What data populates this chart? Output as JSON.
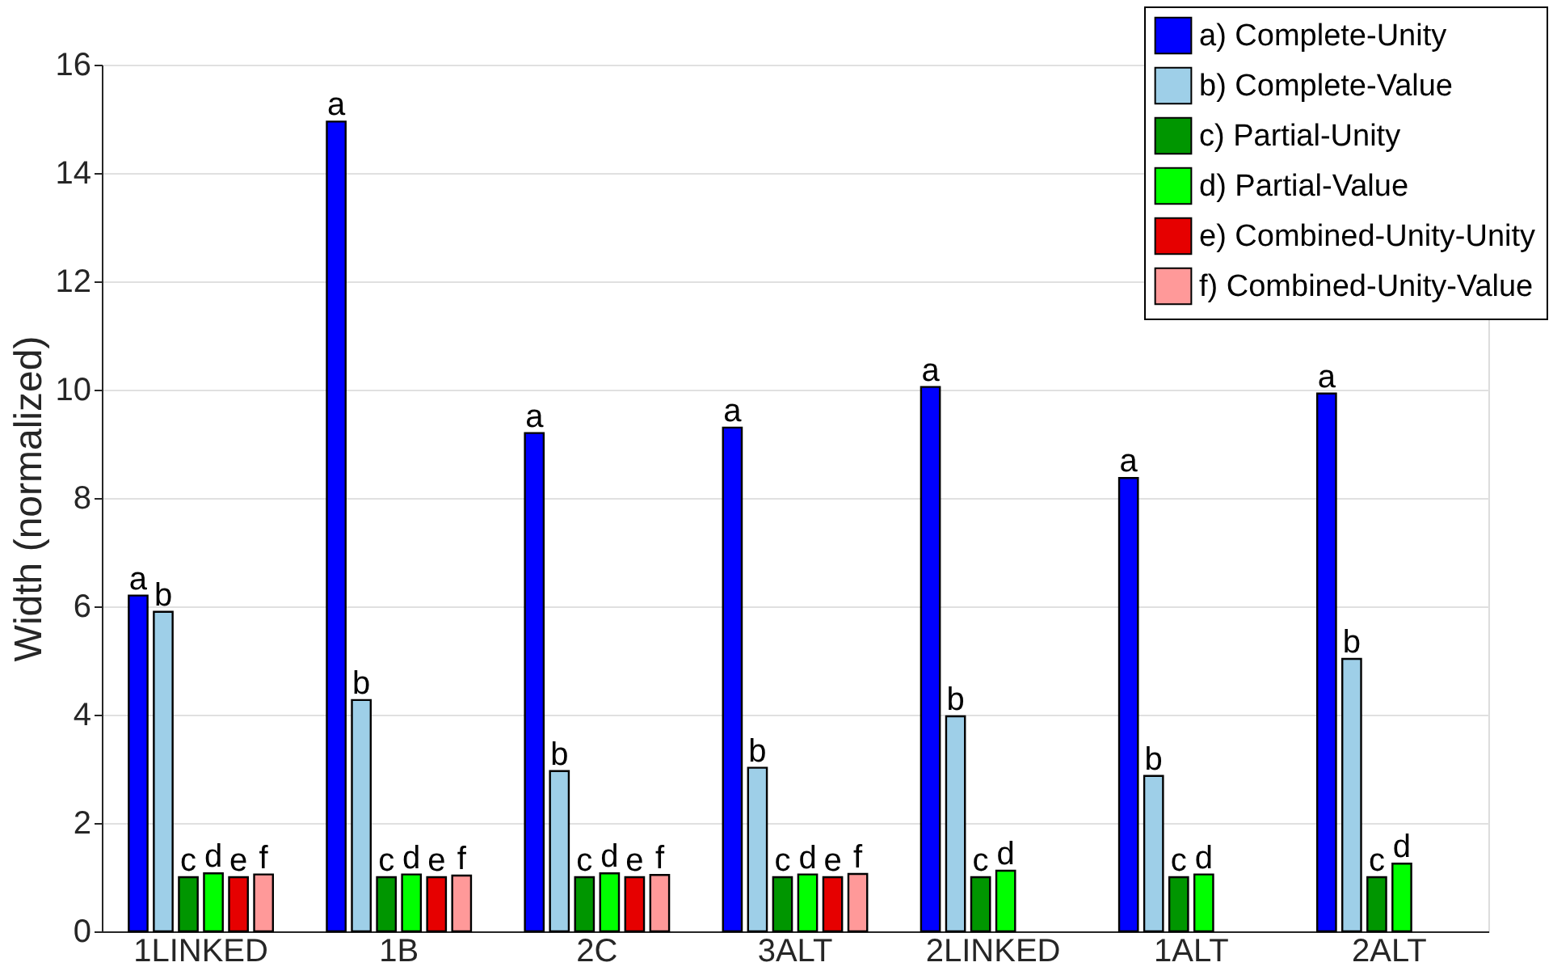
{
  "chart_data": {
    "type": "bar",
    "ylabel": "Width (normalized)",
    "categories": [
      "1LINKED",
      "1B",
      "2C",
      "3ALT",
      "2LINKED",
      "1ALT",
      "2ALT"
    ],
    "ylim": [
      0,
      16
    ],
    "yticks": [
      0,
      2,
      4,
      6,
      8,
      10,
      12,
      14,
      16
    ],
    "grid": "y",
    "legend": "top right",
    "series": [
      {
        "name": "a) Complete-Unity",
        "color": "#0000ff",
        "values": [
          6.2,
          14.95,
          9.2,
          9.3,
          10.05,
          8.37,
          9.93
        ],
        "value_labels": [
          "a",
          "a",
          "a",
          "a",
          "a",
          "a",
          "a"
        ]
      },
      {
        "name": "b) Complete-Value",
        "color": "#9ecfe8",
        "values": [
          5.9,
          4.27,
          2.96,
          3.02,
          3.97,
          2.87,
          5.03
        ],
        "value_labels": [
          "b",
          "b",
          "b",
          "b",
          "b",
          "b",
          "b"
        ]
      },
      {
        "name": "c) Partial-Unity",
        "color": "#009600",
        "values": [
          1.0,
          1.0,
          1.0,
          1.0,
          1.0,
          1.0,
          1.0
        ],
        "value_labels": [
          "c",
          "c",
          "c",
          "c",
          "c",
          "c",
          "c"
        ]
      },
      {
        "name": "d) Partial-Value",
        "color": "#00ff00",
        "values": [
          1.07,
          1.05,
          1.07,
          1.05,
          1.12,
          1.05,
          1.25
        ],
        "value_labels": [
          "d",
          "d",
          "d",
          "d",
          "d",
          "d",
          "d"
        ]
      },
      {
        "name": "e) Combined-Unity-Unity",
        "color": "#e60000",
        "values": [
          1.0,
          1.0,
          1.0,
          1.0,
          null,
          null,
          null
        ],
        "value_labels": [
          "e",
          "e",
          "e",
          "e",
          null,
          null,
          null
        ]
      },
      {
        "name": "f) Combined-Unity-Value",
        "color": "#ff9999",
        "values": [
          1.05,
          1.03,
          1.04,
          1.06,
          null,
          null,
          null
        ],
        "value_labels": [
          "f",
          "f",
          "f",
          "f",
          null,
          null,
          null
        ]
      }
    ]
  }
}
